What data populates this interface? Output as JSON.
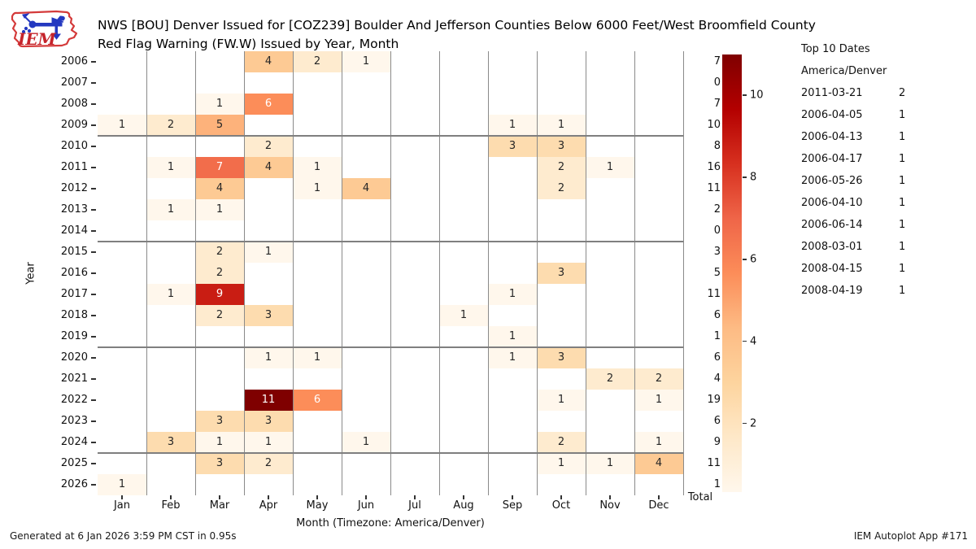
{
  "header": {
    "title_line1": "NWS [BOU] Denver Issued for [COZ239] Boulder And Jefferson Counties Below 6000 Feet/West Broomfield County",
    "title_line2": "Red Flag Warning (FW.W) Issued by Year, Month"
  },
  "logo": {
    "text": "IEM"
  },
  "chart_data": {
    "type": "heatmap",
    "title": "NWS [BOU] Denver Issued for [COZ239] Boulder And Jefferson Counties Below 6000 Feet/West Broomfield County Red Flag Warning (FW.W) Issued by Year, Month",
    "xlabel": "Month (Timezone: America/Denver)",
    "ylabel": "Year",
    "total_label": "Total",
    "categories": [
      "Jan",
      "Feb",
      "Mar",
      "Apr",
      "May",
      "Jun",
      "Jul",
      "Aug",
      "Sep",
      "Oct",
      "Nov",
      "Dec"
    ],
    "rows": [
      {
        "year": "2006",
        "values": [
          0,
          0,
          0,
          4,
          2,
          1,
          0,
          0,
          0,
          0,
          0,
          0
        ],
        "total": 7
      },
      {
        "year": "2007",
        "values": [
          0,
          0,
          0,
          0,
          0,
          0,
          0,
          0,
          0,
          0,
          0,
          0
        ],
        "total": 0
      },
      {
        "year": "2008",
        "values": [
          0,
          0,
          1,
          6,
          0,
          0,
          0,
          0,
          0,
          0,
          0,
          0
        ],
        "total": 7
      },
      {
        "year": "2009",
        "values": [
          1,
          2,
          5,
          0,
          0,
          0,
          0,
          0,
          1,
          1,
          0,
          0
        ],
        "total": 10
      },
      {
        "year": "2010",
        "values": [
          0,
          0,
          0,
          2,
          0,
          0,
          0,
          0,
          3,
          3,
          0,
          0
        ],
        "total": 8
      },
      {
        "year": "2011",
        "values": [
          0,
          1,
          7,
          4,
          1,
          0,
          0,
          0,
          0,
          2,
          1,
          0
        ],
        "total": 16
      },
      {
        "year": "2012",
        "values": [
          0,
          0,
          4,
          0,
          1,
          4,
          0,
          0,
          0,
          2,
          0,
          0
        ],
        "total": 11
      },
      {
        "year": "2013",
        "values": [
          0,
          1,
          1,
          0,
          0,
          0,
          0,
          0,
          0,
          0,
          0,
          0
        ],
        "total": 2
      },
      {
        "year": "2014",
        "values": [
          0,
          0,
          0,
          0,
          0,
          0,
          0,
          0,
          0,
          0,
          0,
          0
        ],
        "total": 0
      },
      {
        "year": "2015",
        "values": [
          0,
          0,
          2,
          1,
          0,
          0,
          0,
          0,
          0,
          0,
          0,
          0
        ],
        "total": 3
      },
      {
        "year": "2016",
        "values": [
          0,
          0,
          2,
          0,
          0,
          0,
          0,
          0,
          0,
          3,
          0,
          0
        ],
        "total": 5
      },
      {
        "year": "2017",
        "values": [
          0,
          1,
          9,
          0,
          0,
          0,
          0,
          0,
          1,
          0,
          0,
          0
        ],
        "total": 11
      },
      {
        "year": "2018",
        "values": [
          0,
          0,
          2,
          3,
          0,
          0,
          0,
          1,
          0,
          0,
          0,
          0
        ],
        "total": 6
      },
      {
        "year": "2019",
        "values": [
          0,
          0,
          0,
          0,
          0,
          0,
          0,
          0,
          1,
          0,
          0,
          0
        ],
        "total": 1
      },
      {
        "year": "2020",
        "values": [
          0,
          0,
          0,
          1,
          1,
          0,
          0,
          0,
          1,
          3,
          0,
          0
        ],
        "total": 6
      },
      {
        "year": "2021",
        "values": [
          0,
          0,
          0,
          0,
          0,
          0,
          0,
          0,
          0,
          0,
          2,
          2
        ],
        "total": 4
      },
      {
        "year": "2022",
        "values": [
          0,
          0,
          0,
          11,
          6,
          0,
          0,
          0,
          0,
          1,
          0,
          1
        ],
        "total": 19
      },
      {
        "year": "2023",
        "values": [
          0,
          0,
          3,
          3,
          0,
          0,
          0,
          0,
          0,
          0,
          0,
          0
        ],
        "total": 6
      },
      {
        "year": "2024",
        "values": [
          0,
          3,
          1,
          1,
          0,
          1,
          0,
          0,
          0,
          2,
          0,
          1
        ],
        "total": 9
      },
      {
        "year": "2025",
        "values": [
          0,
          0,
          3,
          2,
          0,
          0,
          0,
          0,
          0,
          1,
          1,
          4
        ],
        "total": 11
      },
      {
        "year": "2026",
        "values": [
          1,
          0,
          0,
          0,
          0,
          0,
          0,
          0,
          0,
          0,
          0,
          0
        ],
        "total": 1
      }
    ],
    "separator_after_years": [
      "2009",
      "2014",
      "2019",
      "2024"
    ],
    "colorbar": {
      "ticks": [
        2,
        4,
        6,
        8,
        10
      ],
      "min_value": 1,
      "max_value": 11,
      "palette": [
        "#fff7ec",
        "#fee8c8",
        "#fdd49e",
        "#fdbb84",
        "#fc8d59",
        "#ef6548",
        "#d7301f",
        "#b30000",
        "#7f0000"
      ],
      "white_text_from": 6
    },
    "grid_color": "#8a8a8a",
    "legend_position": "right colorbar"
  },
  "top10": {
    "title": "Top 10 Dates",
    "timezone": "America/Denver",
    "entries": [
      {
        "date": "2011-03-21",
        "count": 2
      },
      {
        "date": "2006-04-05",
        "count": 1
      },
      {
        "date": "2006-04-13",
        "count": 1
      },
      {
        "date": "2006-04-17",
        "count": 1
      },
      {
        "date": "2006-05-26",
        "count": 1
      },
      {
        "date": "2006-04-10",
        "count": 1
      },
      {
        "date": "2006-06-14",
        "count": 1
      },
      {
        "date": "2008-03-01",
        "count": 1
      },
      {
        "date": "2008-04-15",
        "count": 1
      },
      {
        "date": "2008-04-19",
        "count": 1
      }
    ]
  },
  "footer": {
    "left": "Generated at 6 Jan 2026 3:59 PM CST in 0.95s",
    "right": "IEM Autoplot App #171"
  }
}
